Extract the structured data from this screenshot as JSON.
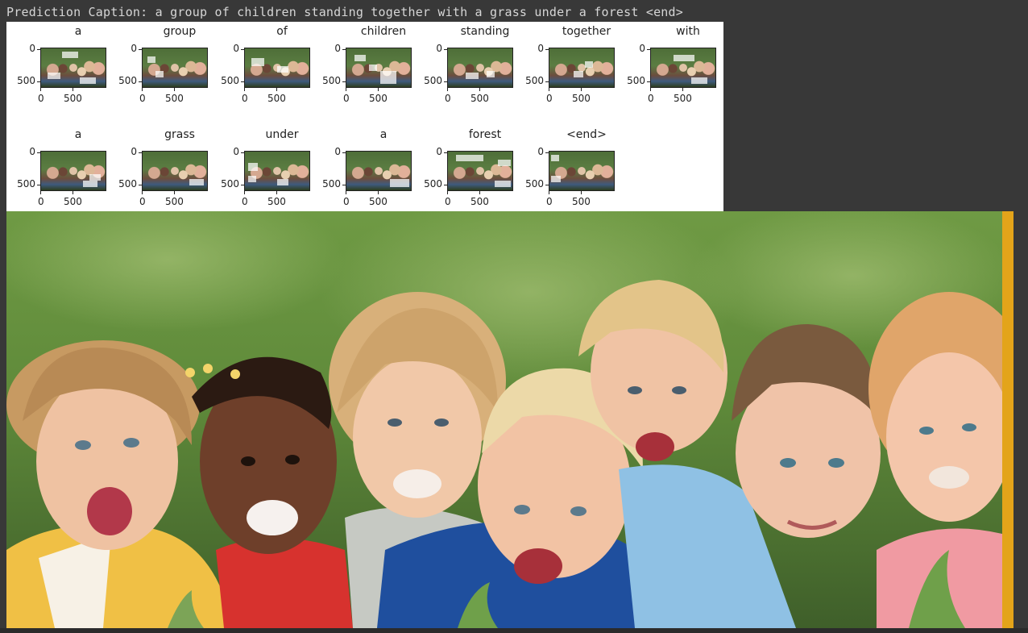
{
  "caption": {
    "text": "Prediction Caption: a group of children standing together with a grass under a forest <end>"
  },
  "attention_panels": [
    {
      "word": "a"
    },
    {
      "word": "group"
    },
    {
      "word": "of"
    },
    {
      "word": "children"
    },
    {
      "word": "standing"
    },
    {
      "word": "together"
    },
    {
      "word": "with"
    },
    {
      "word": "a"
    },
    {
      "word": "grass"
    },
    {
      "word": "under"
    },
    {
      "word": "a"
    },
    {
      "word": "forest"
    },
    {
      "word": "<end>"
    }
  ],
  "axes": {
    "y_ticks": [
      "0",
      "500"
    ],
    "x_ticks": [
      "0",
      "500"
    ]
  },
  "colors": {
    "accent": "#e3a41a",
    "background": "#383838"
  }
}
